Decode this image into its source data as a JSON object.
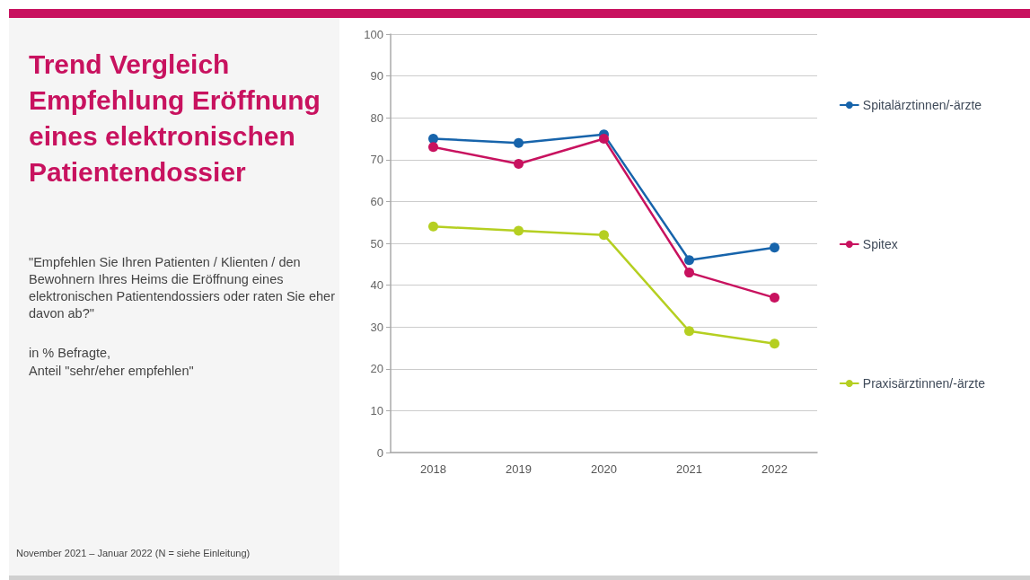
{
  "chart_data": {
    "type": "line",
    "title": "Trend Vergleich Empfehlung Eröffnung eines elektronischen Patientendossier",
    "subtitle": "\"Empfehlen Sie Ihren Patienten / Klienten / den Bewohnern Ihres Heims die Eröffnung eines elektronischen Patientendossiers oder raten Sie eher davon ab?\"",
    "annotations": [
      "in % Befragte,\nAnteil \"sehr/eher empfehlen\"",
      "November 2021 – Januar 2022 (N = siehe Einleitung)"
    ],
    "categories": [
      "2018",
      "2019",
      "2020",
      "2021",
      "2022"
    ],
    "series": [
      {
        "name": "Spitalärztinnen/-ärzte",
        "color": "#1764ab",
        "values": [
          75,
          74,
          76,
          46,
          49
        ]
      },
      {
        "name": "Spitex",
        "color": "#c8125f",
        "values": [
          73,
          69,
          75,
          43,
          37
        ]
      },
      {
        "name": "Praxisärztinnen/-ärzte",
        "color": "#b5cf21",
        "values": [
          54,
          53,
          52,
          29,
          26
        ]
      }
    ],
    "ylim": [
      0,
      100
    ],
    "yticks": [
      0,
      10,
      20,
      30,
      40,
      50,
      60,
      70,
      80,
      90,
      100
    ],
    "grid": "y",
    "legend": "right",
    "marker": "circle",
    "line_style": "solid"
  }
}
